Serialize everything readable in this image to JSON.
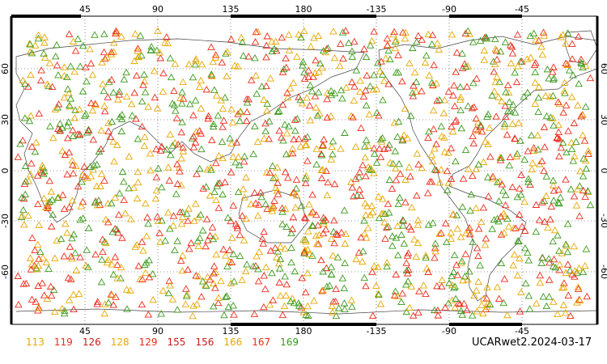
{
  "map": {
    "lon_ticks_top": [
      "45",
      "90",
      "135",
      "180",
      "-135",
      "-90",
      "-45"
    ],
    "lon_ticks_bottom": [
      "45",
      "90",
      "135",
      "180",
      "-135",
      "-90",
      "-45"
    ],
    "lat_ticks": [
      "60",
      "30",
      "0",
      "-30",
      "-60"
    ],
    "marker_symbol": "triangle",
    "marker_colors": [
      "#e8a800",
      "#ee2a1a",
      "#3a9a1a"
    ],
    "gridline_style": "dotted"
  },
  "legend": {
    "items": [
      {
        "label": "113",
        "color": "#e8a800"
      },
      {
        "label": "119",
        "color": "#ee2a1a"
      },
      {
        "label": "126",
        "color": "#cc1a1a"
      },
      {
        "label": "128",
        "color": "#e8a800"
      },
      {
        "label": "129",
        "color": "#ee2a1a"
      },
      {
        "label": "155",
        "color": "#cc1a1a"
      },
      {
        "label": "156",
        "color": "#cc1a1a"
      },
      {
        "label": "166",
        "color": "#e8a800"
      },
      {
        "label": "167",
        "color": "#ee2a1a"
      },
      {
        "label": "169",
        "color": "#3a9a1a"
      }
    ]
  },
  "stamp": {
    "text": "UCARwet2.2024-03-17"
  }
}
